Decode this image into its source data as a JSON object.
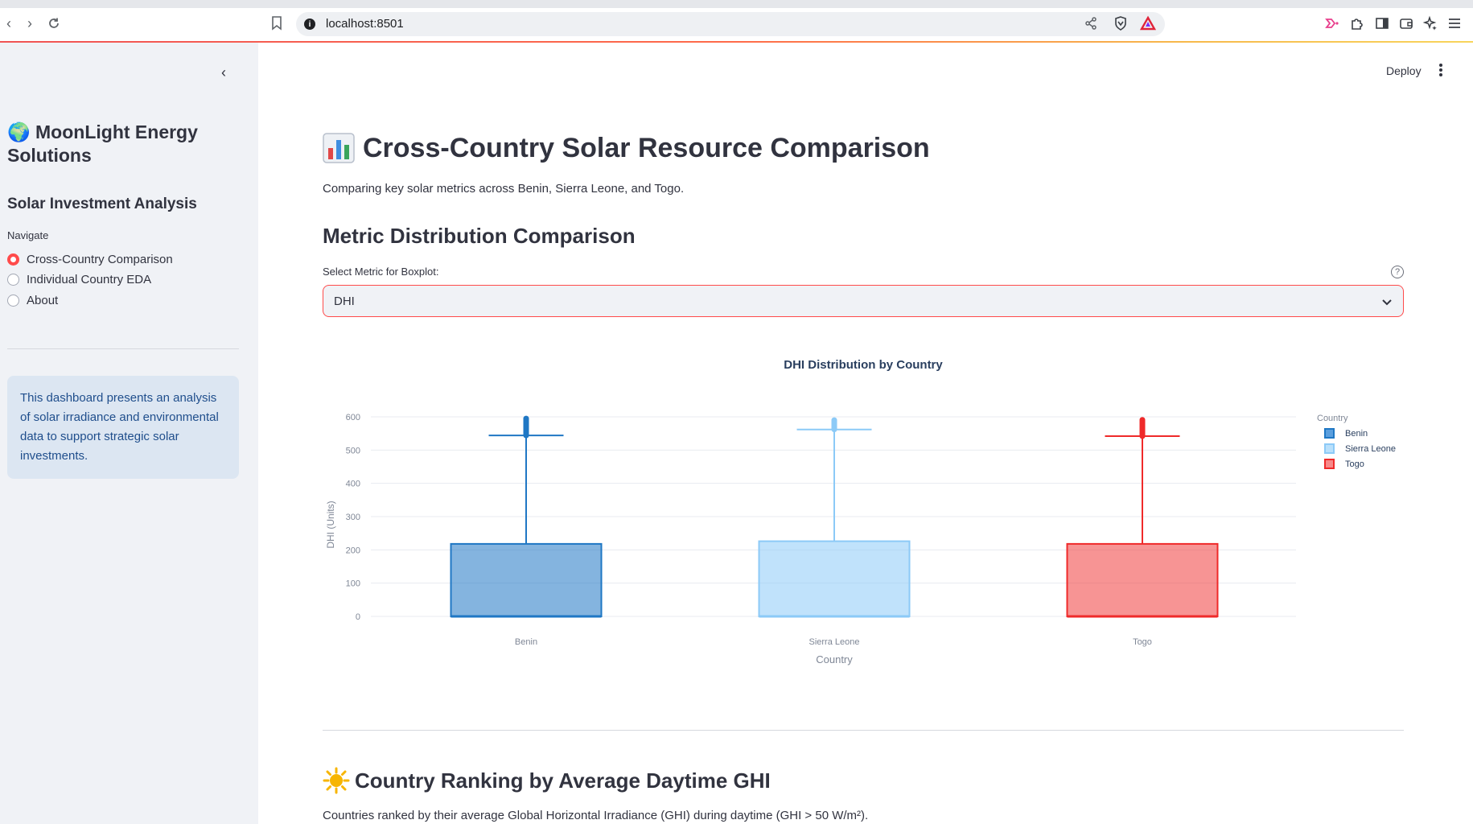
{
  "browser": {
    "url": "localhost:8501"
  },
  "sidebar": {
    "title": "🌍 MoonLight Energy Solutions",
    "subtitle": "Solar Investment Analysis",
    "nav_label": "Navigate",
    "nav_items": [
      {
        "label": "Cross-Country Comparison",
        "selected": true
      },
      {
        "label": "Individual Country EDA",
        "selected": false
      },
      {
        "label": "About",
        "selected": false
      }
    ],
    "info": "This dashboard presents an analysis of solar irradiance and environmental data to support strategic solar investments."
  },
  "header": {
    "deploy_label": "Deploy"
  },
  "main": {
    "title": "Cross-Country Solar Resource Comparison",
    "subtitle": "Comparing key solar metrics across Benin, Sierra Leone, and Togo.",
    "section_title": "Metric Distribution Comparison",
    "select_label": "Select Metric for Boxplot:",
    "select_value": "DHI",
    "section2_title": "Country Ranking by Average Daytime GHI",
    "section2_sub": "Countries ranked by their average Global Horizontal Irradiance (GHI) during daytime (GHI > 50 W/m²)."
  },
  "colors": {
    "accent": "#ff4b4b",
    "benin": "#1f77c4",
    "sierra_leone": "#8ccaf7",
    "togo": "#ef2a2a"
  },
  "chart_data": {
    "type": "box",
    "title": "DHI Distribution by Country",
    "xlabel": "Country",
    "ylabel": "DHI (Units)",
    "ylim": [
      0,
      620
    ],
    "yticks": [
      0,
      100,
      200,
      300,
      400,
      500,
      600
    ],
    "legend_title": "Country",
    "legend_position": "right",
    "series": [
      {
        "name": "Benin",
        "q1": 0,
        "median": 0,
        "q3": 218,
        "lower_fence": 0,
        "upper_fence": 544,
        "outliers_max": 595
      },
      {
        "name": "Sierra Leone",
        "q1": 0,
        "median": 0,
        "q3": 226,
        "lower_fence": 0,
        "upper_fence": 562,
        "outliers_max": 590
      },
      {
        "name": "Togo",
        "q1": 0,
        "median": 0,
        "q3": 218,
        "lower_fence": 0,
        "upper_fence": 542,
        "outliers_max": 591
      }
    ]
  }
}
